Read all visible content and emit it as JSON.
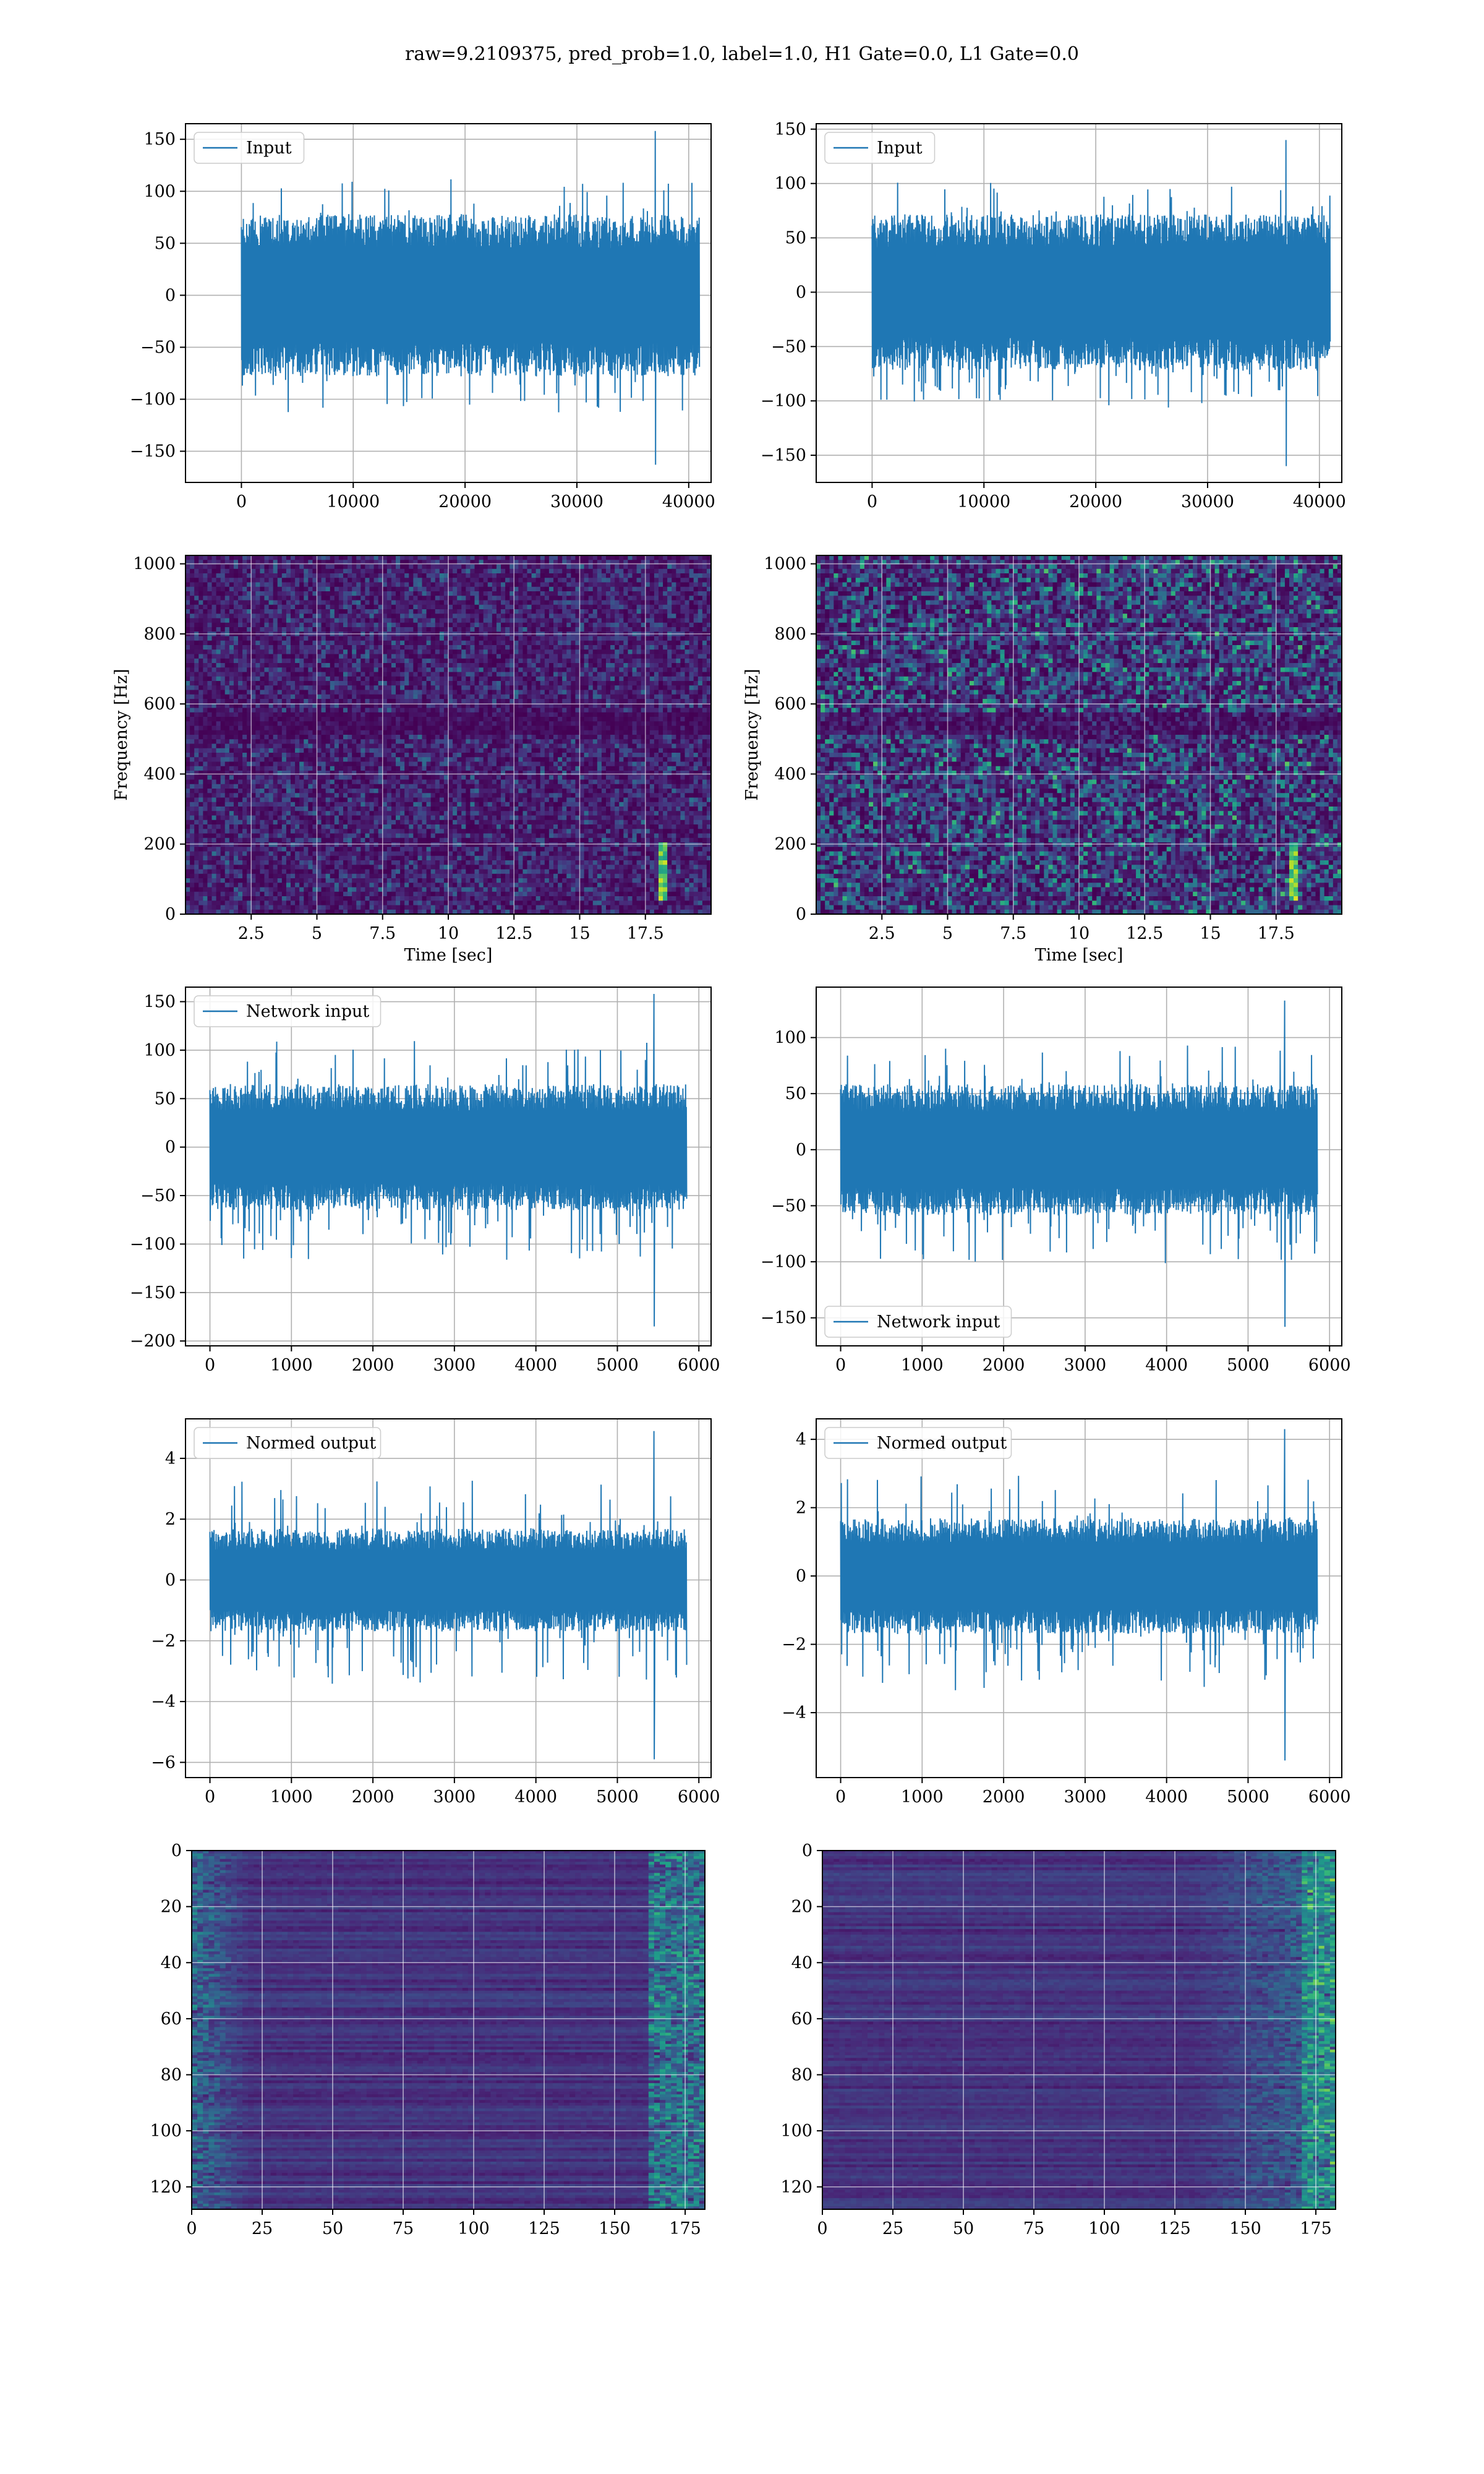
{
  "figure": {
    "title": "raw=9.2109375, pred_prob=1.0, label=1.0, H1 Gate=0.0, L1 Gate=0.0",
    "line_color": "#1f77b4"
  },
  "chart_data": [
    {
      "id": "input-left",
      "type": "line",
      "series": [
        {
          "name": "Input"
        }
      ],
      "xlim": [
        -5000,
        42000
      ],
      "ylim": [
        -180,
        165
      ],
      "xticks": [
        0,
        10000,
        20000,
        30000,
        40000
      ],
      "yticks": [
        -150,
        -100,
        -50,
        0,
        50,
        100,
        150
      ],
      "xlabel": "",
      "ylabel": "",
      "legend": "upper left",
      "grid": true,
      "signal": {
        "n": 40960,
        "core_amplitude": 60,
        "peak_max": 158,
        "peak_min": -163,
        "spike_x": 37000
      }
    },
    {
      "id": "input-right",
      "type": "line",
      "series": [
        {
          "name": "Input"
        }
      ],
      "xlim": [
        -5000,
        42000
      ],
      "ylim": [
        -175,
        155
      ],
      "xticks": [
        0,
        10000,
        20000,
        30000,
        40000
      ],
      "yticks": [
        -150,
        -100,
        -50,
        0,
        50,
        100,
        150
      ],
      "xlabel": "",
      "ylabel": "",
      "legend": "upper left",
      "grid": true,
      "signal": {
        "n": 40960,
        "core_amplitude": 55,
        "peak_max": 140,
        "peak_min": -160,
        "spike_x": 37000
      }
    },
    {
      "id": "spectrogram-left",
      "type": "heatmap",
      "xlim": [
        0,
        20
      ],
      "ylim": [
        0,
        1024
      ],
      "xticks": [
        2.5,
        5.0,
        7.5,
        10.0,
        12.5,
        15.0,
        17.5
      ],
      "yticks": [
        0,
        200,
        400,
        600,
        800,
        1000
      ],
      "xlabel": "Time [sec]",
      "ylabel": "Frequency [Hz]",
      "grid": true,
      "colormap": "viridis",
      "chirp_time": 18.2
    },
    {
      "id": "spectrogram-right",
      "type": "heatmap",
      "xlim": [
        0,
        20
      ],
      "ylim": [
        0,
        1024
      ],
      "xticks": [
        2.5,
        5.0,
        7.5,
        10.0,
        12.5,
        15.0,
        17.5
      ],
      "yticks": [
        0,
        200,
        400,
        600,
        800,
        1000
      ],
      "xlabel": "Time [sec]",
      "ylabel": "Frequency [Hz]",
      "grid": true,
      "colormap": "viridis",
      "chirp_time": 18.2
    },
    {
      "id": "network-input-left",
      "type": "line",
      "series": [
        {
          "name": "Network input"
        }
      ],
      "xlim": [
        -300,
        6150
      ],
      "ylim": [
        -205,
        165
      ],
      "xticks": [
        0,
        1000,
        2000,
        3000,
        4000,
        5000,
        6000
      ],
      "yticks": [
        -200,
        -150,
        -100,
        -50,
        0,
        50,
        100,
        150
      ],
      "xlabel": "",
      "ylabel": "",
      "legend": "upper left",
      "grid": true,
      "signal": {
        "n": 5850,
        "core_amplitude": 50,
        "peak_max": 158,
        "peak_min": -185,
        "spike_x": 5450
      }
    },
    {
      "id": "network-input-right",
      "type": "line",
      "series": [
        {
          "name": "Network input"
        }
      ],
      "xlim": [
        -300,
        6150
      ],
      "ylim": [
        -175,
        145
      ],
      "xticks": [
        0,
        1000,
        2000,
        3000,
        4000,
        5000,
        6000
      ],
      "yticks": [
        -150,
        -100,
        -50,
        0,
        50,
        100
      ],
      "xlabel": "",
      "ylabel": "",
      "legend": "lower left",
      "grid": true,
      "signal": {
        "n": 5850,
        "core_amplitude": 45,
        "peak_max": 133,
        "peak_min": -158,
        "spike_x": 5450
      }
    },
    {
      "id": "normed-output-left",
      "type": "line",
      "series": [
        {
          "name": "Normed output"
        }
      ],
      "xlim": [
        -300,
        6150
      ],
      "ylim": [
        -6.5,
        5.3
      ],
      "xticks": [
        0,
        1000,
        2000,
        3000,
        4000,
        5000,
        6000
      ],
      "yticks": [
        -6,
        -4,
        -2,
        0,
        2,
        4
      ],
      "xlabel": "",
      "ylabel": "",
      "legend": "upper left",
      "grid": true,
      "signal": {
        "n": 5850,
        "core_amplitude": 1.3,
        "peak_max": 4.9,
        "peak_min": -5.9,
        "spike_x": 5450
      }
    },
    {
      "id": "normed-output-right",
      "type": "line",
      "series": [
        {
          "name": "Normed output"
        }
      ],
      "xlim": [
        -300,
        6150
      ],
      "ylim": [
        -5.9,
        4.6
      ],
      "xticks": [
        0,
        1000,
        2000,
        3000,
        4000,
        5000,
        6000
      ],
      "yticks": [
        -4,
        -2,
        0,
        2,
        4
      ],
      "xlabel": "",
      "ylabel": "",
      "legend": "upper left",
      "grid": true,
      "signal": {
        "n": 5850,
        "core_amplitude": 1.3,
        "peak_max": 4.3,
        "peak_min": -5.4,
        "spike_x": 5450
      }
    },
    {
      "id": "feature-map-left",
      "type": "heatmap",
      "xlim": [
        0,
        182
      ],
      "ylim": [
        128,
        0
      ],
      "xticks": [
        0,
        25,
        50,
        75,
        100,
        125,
        150,
        175
      ],
      "yticks": [
        0,
        20,
        40,
        60,
        80,
        100,
        120
      ],
      "xlabel": "",
      "ylabel": "",
      "grid": true,
      "colormap": "viridis"
    },
    {
      "id": "feature-map-right",
      "type": "heatmap",
      "xlim": [
        0,
        182
      ],
      "ylim": [
        128,
        0
      ],
      "xticks": [
        0,
        25,
        50,
        75,
        100,
        125,
        150,
        175
      ],
      "yticks": [
        0,
        20,
        40,
        60,
        80,
        100,
        120
      ],
      "xlabel": "",
      "ylabel": "",
      "grid": true,
      "colormap": "viridis"
    }
  ]
}
